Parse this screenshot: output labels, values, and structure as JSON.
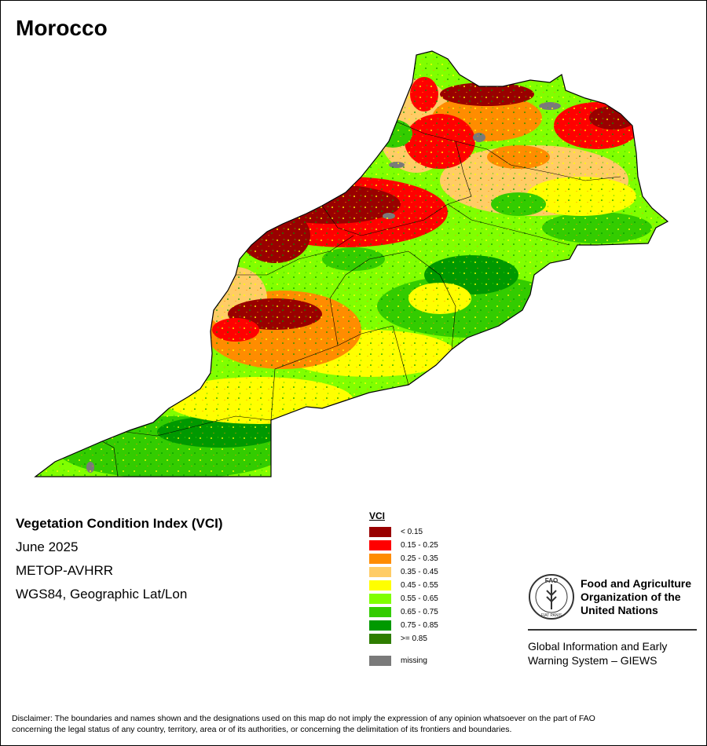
{
  "map": {
    "title": "Morocco",
    "country": "Morocco"
  },
  "info": {
    "index_name": "Vegetation Condition Index (VCI)",
    "date": "June 2025",
    "sensor": "METOP-AVHRR",
    "projection": "WGS84, Geographic Lat/Lon"
  },
  "legend": {
    "title": "VCI",
    "classes": [
      {
        "label": "< 0.15",
        "color": "#990000"
      },
      {
        "label": "0.15 - 0.25",
        "color": "#ff0000"
      },
      {
        "label": "0.25 - 0.35",
        "color": "#ff8c00"
      },
      {
        "label": "0.35 - 0.45",
        "color": "#ffcc66"
      },
      {
        "label": "0.45 - 0.55",
        "color": "#ffff00"
      },
      {
        "label": "0.55 - 0.65",
        "color": "#80ff00"
      },
      {
        "label": "0.65 - 0.75",
        "color": "#33cc00"
      },
      {
        "label": "0.75 - 0.85",
        "color": "#009900"
      },
      {
        "label": ">= 0.85",
        "color": "#2e7d00"
      }
    ],
    "missing": {
      "label": "missing",
      "color": "#7a7a7a"
    }
  },
  "organization": {
    "name_line1": "Food and Agriculture",
    "name_line2": "Organization of the",
    "name_line3": "United Nations",
    "logo_text": "FAO",
    "logo_motto": "FIAT PANIS",
    "program_line1": "Global Information and Early",
    "program_line2": "Warning System – GIEWS"
  },
  "disclaimer": {
    "line1": "Disclaimer: The boundaries and names shown and the designations used on this map do not imply the expression of any opinion whatsoever on the part of FAO",
    "line2": "concerning the legal status of any country, territory, area or of its authorities, or concerning the delimitation of its frontiers and boundaries."
  }
}
